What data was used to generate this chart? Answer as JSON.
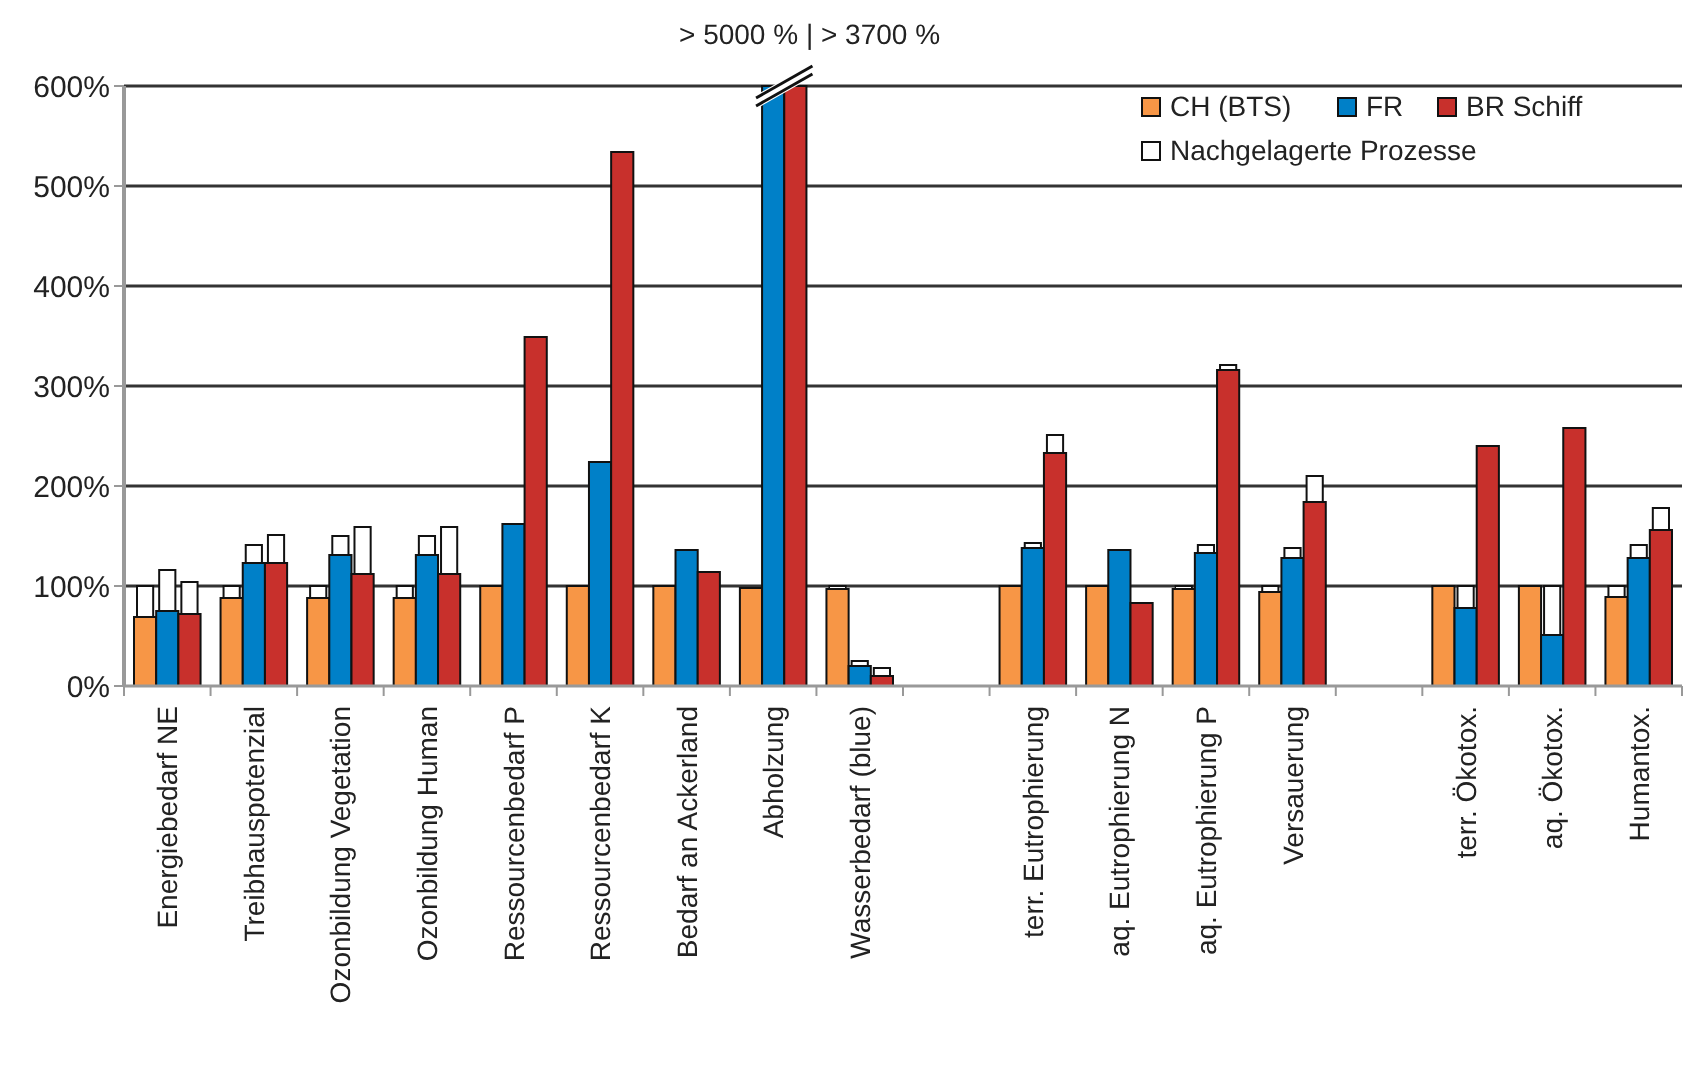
{
  "chart_data": {
    "type": "bar",
    "categories": [
      "Energiebedarf NE",
      "Treibhauspotenzial",
      "Ozonbildung Vegetation",
      "Ozonbildung Human",
      "Ressourcenbedarf P",
      "Ressourcenbedarf K",
      "Bedarf an Ackerland",
      "Abholzung",
      "Wasserbedarf (blue)",
      null,
      "terr. Eutrophierung",
      "aq. Eutrophierung N",
      "aq. Eutrophierung P",
      "Versauerung",
      null,
      "terr. Ökotox.",
      "aq. Ökotox.",
      "Humantox."
    ],
    "series": [
      {
        "name": "CH (BTS)",
        "color": "#f79646",
        "values": [
          69,
          88,
          88,
          88,
          100,
          100,
          100,
          98,
          97,
          null,
          100,
          100,
          97,
          94,
          null,
          100,
          100,
          89
        ]
      },
      {
        "name": "FR",
        "color": "#0080c8",
        "values": [
          75,
          123,
          131,
          131,
          162,
          224,
          136,
          600,
          20,
          null,
          138,
          136,
          133,
          128,
          null,
          78,
          51,
          128
        ]
      },
      {
        "name": "BR Schiff",
        "color": "#c8302c",
        "values": [
          72,
          123,
          112,
          112,
          349,
          534,
          114,
          600,
          10,
          null,
          233,
          83,
          316,
          184,
          null,
          240,
          258,
          156
        ]
      },
      {
        "name": "Nachgelagerte Prozesse",
        "color": "#ffffff",
        "base": [
          69,
          88,
          88,
          88,
          null,
          null,
          null,
          null,
          97,
          null,
          null,
          null,
          97,
          94,
          null,
          null,
          null,
          89
        ],
        "values": [
          31,
          12,
          12,
          12,
          null,
          null,
          null,
          null,
          3,
          null,
          null,
          null,
          3,
          6,
          null,
          null,
          null,
          11
        ]
      },
      {
        "color": "#ffffff",
        "base": [
          75,
          123,
          131,
          131,
          null,
          null,
          null,
          null,
          20,
          null,
          138,
          null,
          133,
          128,
          null,
          78,
          51,
          128
        ],
        "values": [
          41,
          18,
          19,
          19,
          null,
          null,
          null,
          null,
          5,
          null,
          5,
          null,
          8,
          10,
          null,
          22,
          49,
          13
        ]
      },
      {
        "color": "#ffffff",
        "base": [
          72,
          123,
          112,
          112,
          null,
          null,
          null,
          null,
          10,
          null,
          233,
          null,
          316,
          184,
          null,
          null,
          null,
          156
        ],
        "values": [
          32,
          28,
          47,
          47,
          null,
          null,
          null,
          null,
          8,
          null,
          18,
          null,
          5,
          26,
          null,
          null,
          null,
          22
        ]
      }
    ],
    "ylim": [
      0,
      600
    ],
    "yticks": [
      {
        "value": 0,
        "label": "0%"
      },
      {
        "value": 100,
        "label": "100%"
      },
      {
        "value": 200,
        "label": "200%"
      },
      {
        "value": 300,
        "label": "300%"
      },
      {
        "value": 400,
        "label": "400%"
      },
      {
        "value": 500,
        "label": "500%"
      },
      {
        "value": 600,
        "label": "600%"
      }
    ],
    "grid": "y",
    "legend": "top right",
    "annotations": [
      "> 5000 % | > 3700 %"
    ]
  }
}
